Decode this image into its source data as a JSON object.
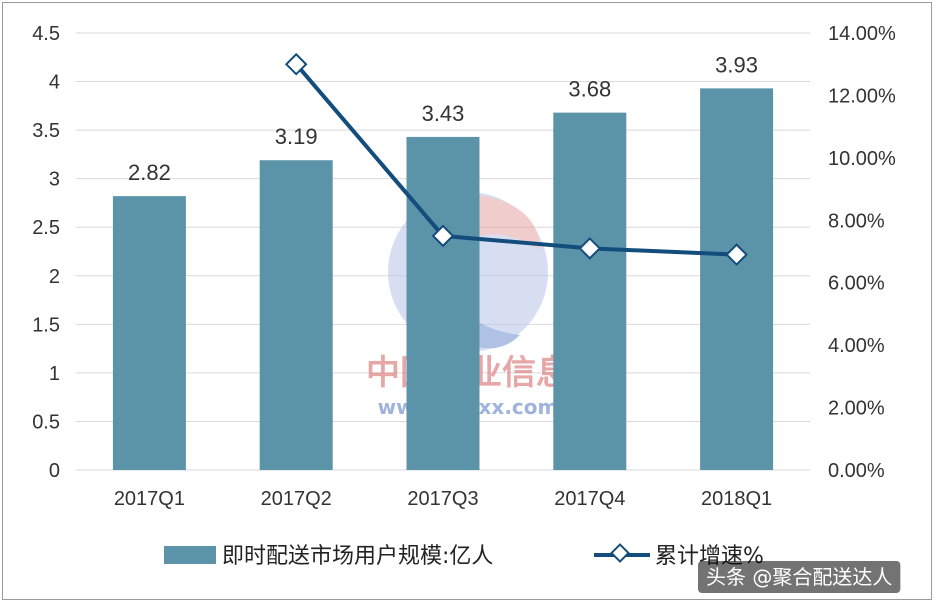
{
  "chart_data": {
    "type": "bar",
    "categories": [
      "2017Q1",
      "2017Q2",
      "2017Q3",
      "2017Q4",
      "2018Q1"
    ],
    "series": [
      {
        "name": "即时配送市场用户规模:亿人",
        "type": "bar",
        "axis": "left",
        "values": [
          2.82,
          3.19,
          3.43,
          3.68,
          3.93
        ],
        "data_labels": [
          "2.82",
          "3.19",
          "3.43",
          "3.68",
          "3.93"
        ]
      },
      {
        "name": "累计增速%",
        "type": "line",
        "axis": "right",
        "values": [
          null,
          13.0,
          7.5,
          7.1,
          6.9
        ]
      }
    ],
    "y_left": {
      "ticks": [
        "0",
        "0.5",
        "1",
        "1.5",
        "2",
        "2.5",
        "3",
        "3.5",
        "4",
        "4.5"
      ],
      "ylim": [
        0,
        4.5
      ]
    },
    "y_right": {
      "ticks": [
        "0.00%",
        "2.00%",
        "4.00%",
        "6.00%",
        "8.00%",
        "10.00%",
        "12.00%",
        "14.00%"
      ],
      "ylim": [
        0,
        14
      ]
    },
    "grid": true,
    "legend_position": "bottom",
    "colors": {
      "bar": "#5b93a8",
      "line": "#124d7c",
      "grid": "#d9d9d9"
    }
  },
  "watermark": {
    "name": "中国产业信息",
    "url": "www.chyxx.com"
  },
  "credit": "头条 @聚合配送达人"
}
